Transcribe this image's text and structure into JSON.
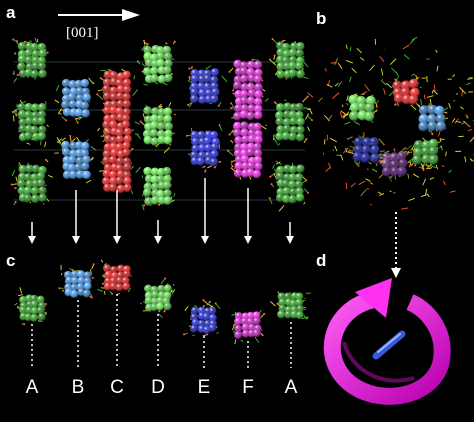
{
  "figure": {
    "panel_labels": {
      "a": "a",
      "b": "b",
      "c": "c",
      "d": "d"
    },
    "direction_label": "[001]",
    "column_labels": [
      "A",
      "B",
      "C",
      "D",
      "E",
      "F",
      "A"
    ],
    "colors": {
      "green": "#2a9d1f",
      "bright_green": "#5fe04a",
      "light_blue": "#3f8fe0",
      "red": "#e01818",
      "blue": "#1a22d0",
      "magenta": "#e020d8",
      "purple": "#7a2aa8",
      "lattice": "#e8e030",
      "background": "#000000"
    },
    "panel_a_columns": [
      {
        "id": "A",
        "color": "green",
        "clusters": [
          "green",
          "green",
          "green"
        ]
      },
      {
        "id": "B",
        "color": "light_blue",
        "clusters": [
          "light_blue",
          "light_blue"
        ]
      },
      {
        "id": "C",
        "color": "red",
        "clusters": [
          "red",
          "red"
        ]
      },
      {
        "id": "D",
        "color": "bright_green",
        "clusters": [
          "bright_green",
          "bright_green",
          "bright_green"
        ]
      },
      {
        "id": "E",
        "color": "blue",
        "clusters": [
          "blue",
          "blue"
        ]
      },
      {
        "id": "F",
        "color": "magenta",
        "clusters": [
          "magenta",
          "magenta"
        ]
      },
      {
        "id": "A",
        "color": "green",
        "clusters": [
          "green",
          "green",
          "green"
        ]
      }
    ],
    "panel_c_clusters": [
      "green",
      "light_blue",
      "red",
      "bright_green",
      "blue",
      "magenta",
      "green"
    ],
    "panel_b_segments": [
      "red",
      "light_blue",
      "green",
      "purple",
      "blue",
      "bright_green"
    ],
    "panel_d_arrow_color": "magenta"
  }
}
